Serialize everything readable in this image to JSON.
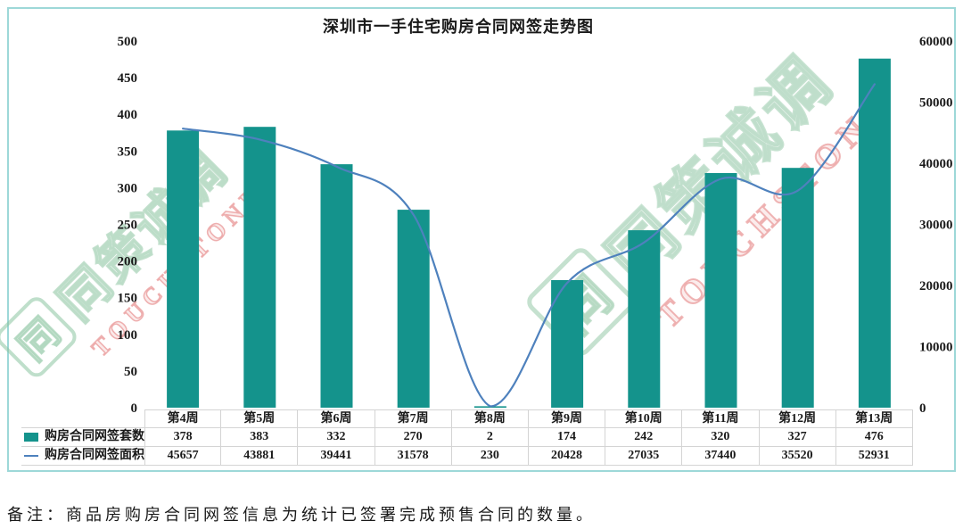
{
  "note": "备注：商品房购房合同网签信息为统计已签署完成预售合同的数量。",
  "watermark": {
    "logo_char": "同",
    "cn": "同策诚调",
    "en": "TOUCHSTONE"
  },
  "colors": {
    "bar": "#14938C",
    "line": "#4E81BD",
    "frame_border": "#9DD8D8",
    "table_border": "#D4D4D4",
    "text": "#1A1A1A"
  },
  "chart_data": {
    "type": "combo-bar-line",
    "title": "深圳市一手住宅购房合同网签走势图",
    "categories": [
      "第4周",
      "第5周",
      "第6周",
      "第7周",
      "第8周",
      "第9周",
      "第10周",
      "第11周",
      "第12周",
      "第13周"
    ],
    "series": [
      {
        "name": "购房合同网签套数",
        "type": "bar",
        "axis": "left",
        "color": "#14938C",
        "values": [
          378,
          383,
          332,
          270,
          2,
          174,
          242,
          320,
          327,
          476
        ]
      },
      {
        "name": "购房合同网签面积",
        "type": "line",
        "axis": "right",
        "color": "#4E81BD",
        "values": [
          45657,
          43881,
          39441,
          31578,
          230,
          20428,
          27035,
          37440,
          35520,
          52931
        ]
      }
    ],
    "left_axis": {
      "min": 0,
      "max": 500,
      "ticks": [
        0,
        50,
        100,
        150,
        200,
        250,
        300,
        350,
        400,
        450,
        500
      ]
    },
    "right_axis": {
      "min": 0,
      "max": 60000,
      "ticks": [
        0,
        10000,
        20000,
        30000,
        40000,
        50000,
        60000
      ]
    },
    "grid": false,
    "legend_position": "data-table-left",
    "smooth_line": true
  }
}
